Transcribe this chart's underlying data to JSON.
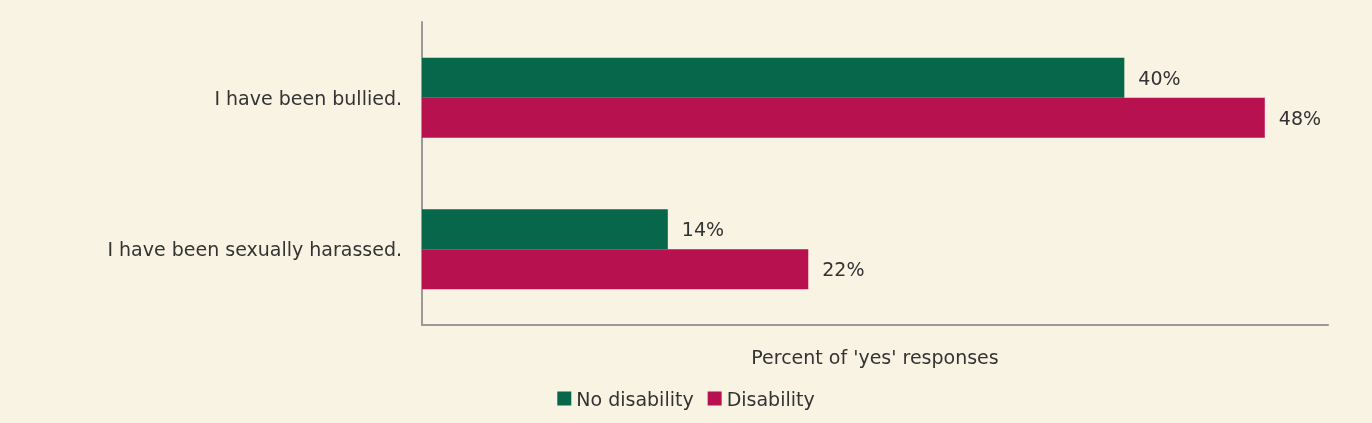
{
  "chart_data": {
    "type": "bar",
    "orientation": "horizontal",
    "xlabel": "Percent of 'yes' responses",
    "categories": [
      "I have been bullied.",
      "I have been sexually harassed."
    ],
    "series": [
      {
        "name": "No disability",
        "color": "#07674a",
        "values": [
          40,
          14
        ],
        "value_labels": [
          "40%",
          "14%"
        ]
      },
      {
        "name": "Disability",
        "color": "#b81150",
        "values": [
          48,
          22
        ],
        "value_labels": [
          "48%",
          "22%"
        ]
      }
    ],
    "xlim": [
      0,
      51.6
    ],
    "tick_labels": "y",
    "grid": false,
    "legend": "bottom"
  }
}
